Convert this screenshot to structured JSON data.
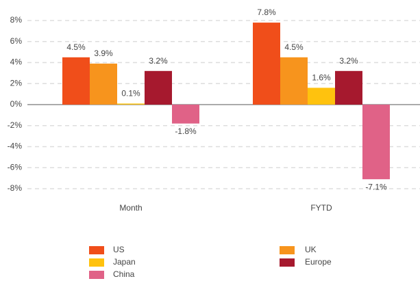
{
  "chart_data": {
    "type": "bar",
    "categories": [
      "Month",
      "FYTD"
    ],
    "series": [
      {
        "name": "US",
        "color": "#f04e1a",
        "values": [
          4.5,
          7.8
        ],
        "value_labels": [
          "4.5%",
          "7.8%"
        ]
      },
      {
        "name": "UK",
        "color": "#f7941d",
        "values": [
          3.9,
          4.5
        ],
        "value_labels": [
          "3.9%",
          "4.5%"
        ]
      },
      {
        "name": "Japan",
        "color": "#ffc20e",
        "values": [
          0.1,
          1.6
        ],
        "value_labels": [
          "0.1%",
          "1.6%"
        ]
      },
      {
        "name": "Europe",
        "color": "#a6192e",
        "values": [
          3.2,
          3.2
        ],
        "value_labels": [
          "3.2%",
          "3.2%"
        ]
      },
      {
        "name": "China",
        "color": "#e06287",
        "values": [
          -1.8,
          -7.1
        ],
        "value_labels": [
          "-1.8%",
          "-7.1%"
        ]
      }
    ],
    "ylim": [
      -8,
      8
    ],
    "yticks": [
      {
        "value": 8,
        "label": "8%"
      },
      {
        "value": 6,
        "label": "6%"
      },
      {
        "value": 4,
        "label": "4%"
      },
      {
        "value": 2,
        "label": "2%"
      },
      {
        "value": 0,
        "label": "0%"
      },
      {
        "value": -2,
        "label": "-2%"
      },
      {
        "value": -4,
        "label": "-4%"
      },
      {
        "value": -6,
        "label": "-6%"
      },
      {
        "value": -8,
        "label": "-8%"
      }
    ],
    "grid": true
  }
}
